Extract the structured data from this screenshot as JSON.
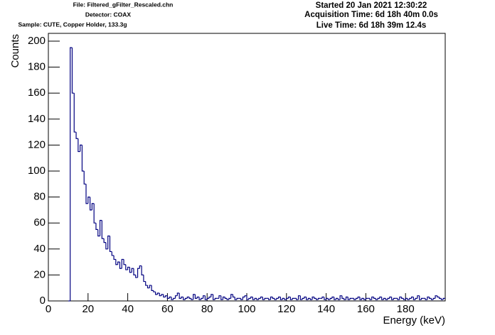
{
  "chart_data": {
    "type": "histogram",
    "header_left": [
      "File: Filtered_gFilter_Rescaled.chn",
      "Detector: COAX",
      "Sample: CUTE, Copper Holder, 133.3g"
    ],
    "header_right": [
      "Started 20 Jan 2021 12:30:22",
      "Acquisition Time: 6d 18h 40m 0.0s",
      "Live Time: 6d 18h 39m 12.4s"
    ],
    "x_label": "Energy (keV)",
    "y_label": "Counts",
    "color": "#000080",
    "xlim": [
      0,
      200
    ],
    "ylim": [
      0,
      206
    ],
    "xticks": [
      0,
      20,
      40,
      60,
      80,
      100,
      120,
      140,
      160,
      180
    ],
    "yticks": [
      0,
      20,
      40,
      60,
      80,
      100,
      120,
      140,
      160,
      180,
      200
    ],
    "bins": [
      10,
      11,
      12,
      13,
      14,
      15,
      16,
      17,
      18,
      19,
      20,
      21,
      22,
      23,
      24,
      25,
      26,
      27,
      28,
      29,
      30,
      31,
      32,
      33,
      34,
      35,
      36,
      37,
      38,
      39,
      40,
      41,
      42,
      43,
      44,
      45,
      46,
      47,
      48,
      49,
      50,
      51,
      52,
      53,
      54,
      55,
      56,
      57,
      58,
      59,
      60,
      61,
      62,
      63,
      64,
      65,
      66,
      67,
      68,
      69,
      70,
      71,
      72,
      73,
      74,
      75,
      76,
      77,
      78,
      79,
      80,
      81,
      82,
      83,
      84,
      85,
      86,
      87,
      88,
      89,
      90,
      91,
      92,
      93,
      94,
      95,
      96,
      97,
      98,
      99,
      100,
      101,
      102,
      103,
      104,
      105,
      106,
      107,
      108,
      109,
      110,
      111,
      112,
      113,
      114,
      115,
      116,
      117,
      118,
      119,
      120,
      121,
      122,
      123,
      124,
      125,
      126,
      127,
      128,
      129,
      130,
      131,
      132,
      133,
      134,
      135,
      136,
      137,
      138,
      139,
      140,
      141,
      142,
      143,
      144,
      145,
      146,
      147,
      148,
      149,
      150,
      151,
      152,
      153,
      154,
      155,
      156,
      157,
      158,
      159,
      160,
      161,
      162,
      163,
      164,
      165,
      166,
      167,
      168,
      169,
      170,
      171,
      172,
      173,
      174,
      175,
      176,
      177,
      178,
      179,
      180,
      181,
      182,
      183,
      184,
      185,
      186,
      187,
      188,
      189,
      190,
      191,
      192,
      193,
      194,
      195,
      196,
      197,
      198,
      199,
      200
    ],
    "counts": [
      0,
      195,
      160,
      130,
      125,
      115,
      120,
      100,
      90,
      75,
      80,
      70,
      75,
      60,
      55,
      50,
      62,
      48,
      45,
      40,
      50,
      38,
      35,
      32,
      28,
      30,
      25,
      32,
      28,
      24,
      26,
      22,
      25,
      20,
      18,
      25,
      27,
      20,
      15,
      12,
      10,
      12,
      8,
      7,
      5,
      6,
      4,
      5,
      3,
      4,
      2,
      3,
      1,
      2,
      4,
      6,
      2,
      3,
      1,
      2,
      3,
      2,
      1,
      5,
      2,
      3,
      1,
      2,
      4,
      1,
      2,
      3,
      5,
      1,
      2,
      2,
      4,
      1,
      3,
      2,
      1,
      2,
      5,
      3,
      1,
      2,
      2,
      1,
      3,
      4,
      1,
      2,
      3,
      1,
      2,
      1,
      2,
      3,
      1,
      2,
      2,
      1,
      3,
      2,
      1,
      2,
      3,
      1,
      2,
      1,
      2,
      3,
      1,
      2,
      2,
      1,
      4,
      1,
      2,
      3,
      1,
      2,
      1,
      3,
      2,
      1,
      2,
      2,
      3,
      1,
      2,
      1,
      2,
      3,
      1,
      2,
      1,
      4,
      2,
      1,
      3,
      1,
      2,
      2,
      1,
      2,
      3,
      1,
      2,
      1,
      2,
      2,
      1,
      3,
      2,
      1,
      2,
      3,
      1,
      2,
      1,
      2,
      3,
      1,
      2,
      2,
      1,
      3,
      2,
      1,
      2,
      1,
      2,
      3,
      1,
      2,
      4,
      1,
      2,
      2,
      1,
      3,
      2,
      1,
      2,
      4,
      3,
      2,
      1,
      2
    ]
  }
}
